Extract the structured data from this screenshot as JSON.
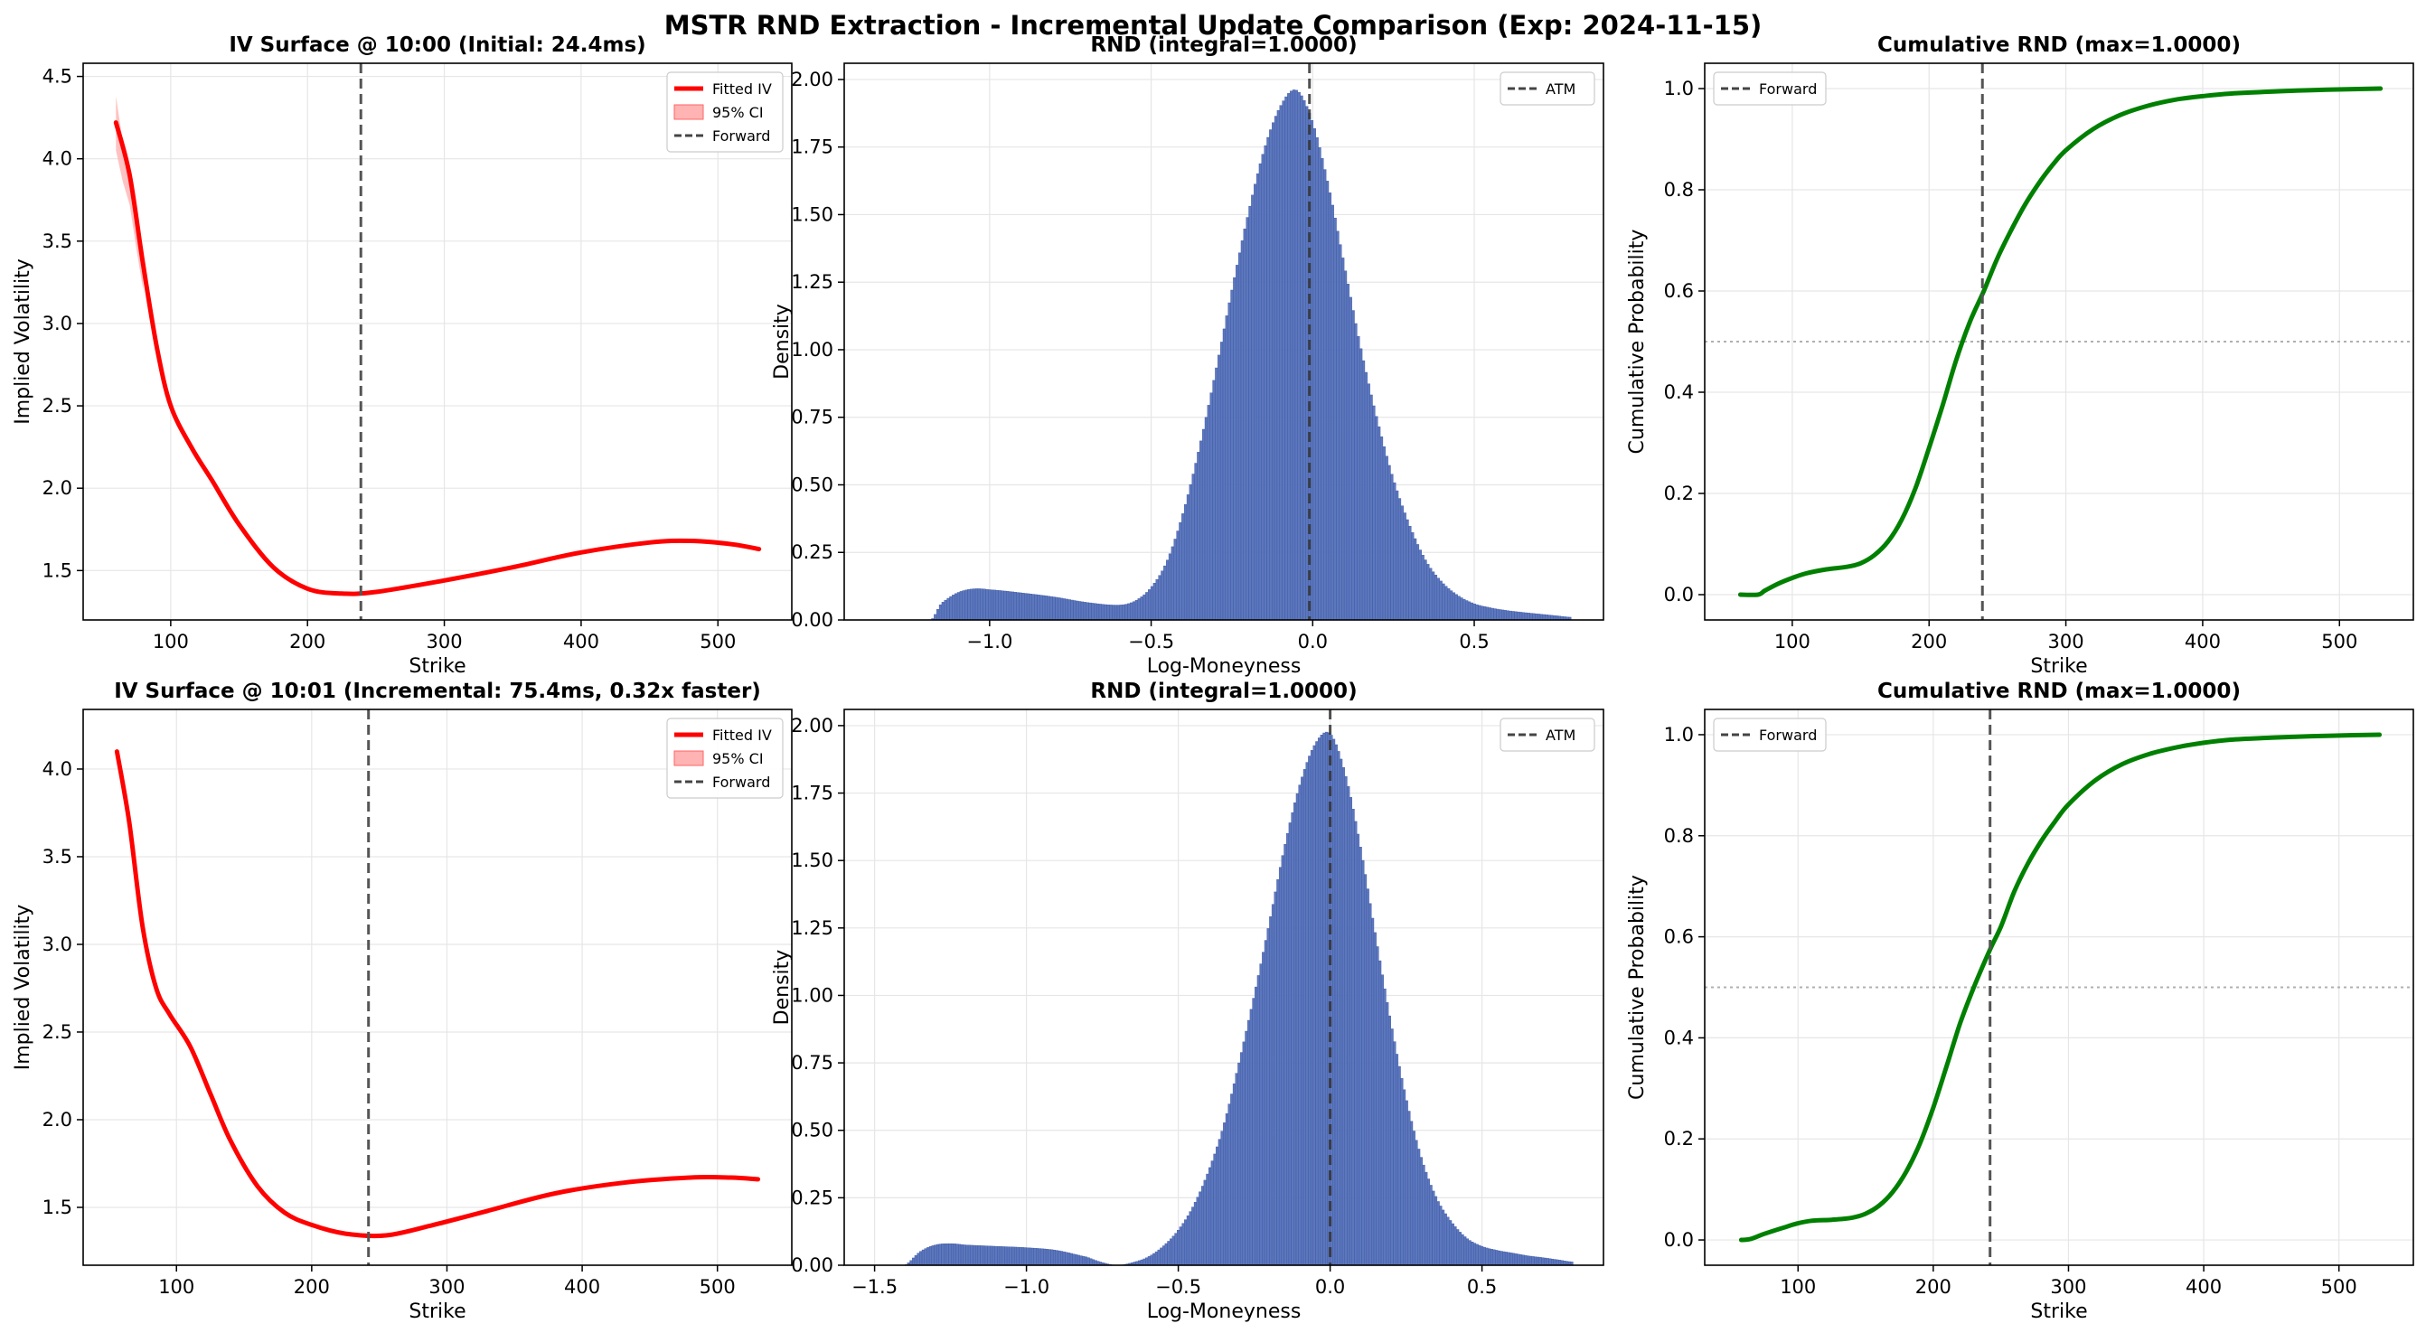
{
  "figure": {
    "title": "MSTR RND Extraction - Incremental Update Comparison (Exp: 2024-11-15)",
    "colors": {
      "iv": "#ff0000",
      "ci": "#ffb3b3",
      "bars": "#5470b8",
      "bar_edge": "#3a56a6",
      "cdf": "#008000",
      "vline": "#555555"
    }
  },
  "chart_data": [
    {
      "id": "iv1",
      "type": "line",
      "title": "IV Surface @ 10:00 (Initial: 24.4ms)",
      "xlabel": "Strike",
      "ylabel": "Implied Volatility",
      "xlim": [
        36,
        554
      ],
      "ylim": [
        1.2,
        4.58
      ],
      "xticks": [
        100,
        200,
        300,
        400,
        500
      ],
      "xticklabels": [
        "100",
        "200",
        "300",
        "400",
        "500"
      ],
      "yticks": [
        1.5,
        2.0,
        2.5,
        3.0,
        3.5,
        4.0,
        4.5
      ],
      "yticklabels": [
        "1.5",
        "2.0",
        "2.5",
        "3.0",
        "3.5",
        "4.0",
        "4.5"
      ],
      "grid": true,
      "legend_position": "upper right",
      "legend": [
        "Fitted IV",
        "95% CI",
        "Forward"
      ],
      "vline": 239,
      "vline_legend": "Forward",
      "series": [
        {
          "name": "Fitted IV",
          "x": [
            60,
            70,
            80,
            90,
            100,
            115,
            130,
            150,
            175,
            200,
            225,
            250,
            300,
            350,
            400,
            450,
            480,
            510,
            530
          ],
          "y": [
            4.22,
            3.9,
            3.35,
            2.85,
            2.5,
            2.25,
            2.05,
            1.78,
            1.52,
            1.39,
            1.36,
            1.37,
            1.44,
            1.52,
            1.61,
            1.67,
            1.68,
            1.66,
            1.63
          ]
        }
      ],
      "ci_band": {
        "name": "95% CI",
        "x": [
          60,
          65,
          70,
          75,
          80
        ],
        "lower": [
          4.05,
          3.86,
          3.72,
          3.45,
          3.2
        ],
        "upper": [
          4.38,
          4.1,
          3.92,
          3.55,
          3.26
        ]
      }
    },
    {
      "id": "rnd1",
      "type": "bar",
      "title": "RND (integral=1.0000)",
      "xlabel": "Log-Moneyness",
      "ylabel": "Density",
      "xlim": [
        -1.45,
        0.9
      ],
      "ylim": [
        0,
        2.06
      ],
      "xticks": [
        -1.0,
        -0.5,
        0.0,
        0.5
      ],
      "xticklabels": [
        "−1.0",
        "−0.5",
        "0.0",
        "0.5"
      ],
      "yticks": [
        0,
        0.25,
        0.5,
        0.75,
        1.0,
        1.25,
        1.5,
        1.75,
        2.0
      ],
      "yticklabels": [
        "0.00",
        "0.25",
        "0.50",
        "0.75",
        "1.00",
        "1.25",
        "1.50",
        "1.75",
        "2.00"
      ],
      "grid": true,
      "legend_position": "upper right",
      "legend": [
        "ATM"
      ],
      "vline": -0.01,
      "vline_legend": "ATM",
      "x": [
        -1.18,
        -1.15,
        -1.1,
        -1.05,
        -1.0,
        -0.9,
        -0.8,
        -0.7,
        -0.6,
        -0.55,
        -0.5,
        -0.45,
        -0.4,
        -0.35,
        -0.3,
        -0.25,
        -0.2,
        -0.15,
        -0.1,
        -0.05,
        0.0,
        0.05,
        0.1,
        0.15,
        0.2,
        0.25,
        0.3,
        0.35,
        0.4,
        0.45,
        0.5,
        0.55,
        0.6,
        0.65,
        0.7,
        0.75,
        0.8
      ],
      "values": [
        0.0,
        0.06,
        0.1,
        0.115,
        0.112,
        0.1,
        0.085,
        0.065,
        0.055,
        0.07,
        0.12,
        0.22,
        0.4,
        0.64,
        0.92,
        1.22,
        1.5,
        1.74,
        1.9,
        1.96,
        1.84,
        1.6,
        1.3,
        1.0,
        0.74,
        0.52,
        0.35,
        0.22,
        0.14,
        0.09,
        0.06,
        0.045,
        0.035,
        0.028,
        0.022,
        0.016,
        0.01
      ]
    },
    {
      "id": "cdf1",
      "type": "line",
      "title": "Cumulative RND (max=1.0000)",
      "xlabel": "Strike",
      "ylabel": "Cumulative Probability",
      "xlim": [
        36,
        554
      ],
      "ylim": [
        -0.05,
        1.05
      ],
      "xticks": [
        100,
        200,
        300,
        400,
        500
      ],
      "xticklabels": [
        "100",
        "200",
        "300",
        "400",
        "500"
      ],
      "yticks": [
        0.0,
        0.2,
        0.4,
        0.6,
        0.8,
        1.0
      ],
      "yticklabels": [
        "0.0",
        "0.2",
        "0.4",
        "0.6",
        "0.8",
        "1.0"
      ],
      "grid": true,
      "legend_position": "upper left",
      "legend": [
        "Forward"
      ],
      "vline": 239,
      "vline_legend": "Forward",
      "hline": 0.5,
      "series": [
        {
          "x": [
            62,
            75,
            80,
            90,
            100,
            110,
            125,
            140,
            150,
            160,
            170,
            180,
            190,
            200,
            210,
            220,
            230,
            240,
            250,
            260,
            270,
            280,
            290,
            300,
            320,
            340,
            360,
            380,
            400,
            420,
            450,
            480,
            510,
            530
          ],
          "y": [
            0.0,
            0.0,
            0.008,
            0.022,
            0.033,
            0.042,
            0.05,
            0.055,
            0.062,
            0.078,
            0.105,
            0.148,
            0.21,
            0.29,
            0.375,
            0.465,
            0.54,
            0.6,
            0.665,
            0.72,
            0.77,
            0.812,
            0.848,
            0.878,
            0.92,
            0.948,
            0.966,
            0.978,
            0.985,
            0.99,
            0.994,
            0.997,
            0.999,
            1.0
          ]
        }
      ]
    },
    {
      "id": "iv2",
      "type": "line",
      "title": "IV Surface @ 10:01 (Incremental: 75.4ms, 0.32x faster)",
      "xlabel": "Strike",
      "ylabel": "Implied Volatility",
      "xlim": [
        31,
        555
      ],
      "ylim": [
        1.17,
        4.34
      ],
      "xticks": [
        100,
        200,
        300,
        400,
        500
      ],
      "xticklabels": [
        "100",
        "200",
        "300",
        "400",
        "500"
      ],
      "yticks": [
        1.5,
        2.0,
        2.5,
        3.0,
        3.5,
        4.0
      ],
      "yticklabels": [
        "1.5",
        "2.0",
        "2.5",
        "3.0",
        "3.5",
        "4.0"
      ],
      "grid": true,
      "legend_position": "upper right",
      "legend": [
        "Fitted IV",
        "95% CI",
        "Forward"
      ],
      "vline": 242,
      "vline_legend": "Forward",
      "series": [
        {
          "name": "Fitted IV",
          "x": [
            56,
            65,
            75,
            85,
            95,
            110,
            125,
            140,
            160,
            180,
            200,
            225,
            255,
            290,
            330,
            380,
            430,
            480,
            510,
            530
          ],
          "y": [
            4.1,
            3.7,
            3.1,
            2.75,
            2.6,
            2.42,
            2.15,
            1.88,
            1.62,
            1.47,
            1.4,
            1.35,
            1.34,
            1.4,
            1.48,
            1.58,
            1.64,
            1.67,
            1.67,
            1.66
          ]
        }
      ],
      "ci_band": {
        "name": "95% CI",
        "x": [
          56,
          530
        ],
        "lower": [
          4.1,
          1.66
        ],
        "upper": [
          4.1,
          1.66
        ]
      }
    },
    {
      "id": "rnd2",
      "type": "bar",
      "title": "RND (integral=1.0000)",
      "xlabel": "Log-Moneyness",
      "ylabel": "Density",
      "xlim": [
        -1.6,
        0.9
      ],
      "ylim": [
        0,
        2.06
      ],
      "xticks": [
        -1.5,
        -1.0,
        -0.5,
        0.0,
        0.5
      ],
      "xticklabels": [
        "−1.5",
        "−1.0",
        "−0.5",
        "0.0",
        "0.5"
      ],
      "yticks": [
        0,
        0.25,
        0.5,
        0.75,
        1.0,
        1.25,
        1.5,
        1.75,
        2.0
      ],
      "yticklabels": [
        "0.00",
        "0.25",
        "0.50",
        "0.75",
        "1.00",
        "1.25",
        "1.50",
        "1.75",
        "2.00"
      ],
      "grid": true,
      "legend_position": "upper right",
      "legend": [
        "ATM"
      ],
      "vline": 0.0,
      "vline_legend": "ATM",
      "x": [
        -1.4,
        -1.35,
        -1.3,
        -1.25,
        -1.2,
        -1.1,
        -1.0,
        -0.9,
        -0.8,
        -0.75,
        -0.7,
        -0.65,
        -0.6,
        -0.55,
        -0.5,
        -0.45,
        -0.4,
        -0.35,
        -0.3,
        -0.25,
        -0.2,
        -0.15,
        -0.1,
        -0.05,
        0.0,
        0.05,
        0.1,
        0.15,
        0.2,
        0.25,
        0.3,
        0.35,
        0.4,
        0.45,
        0.5,
        0.55,
        0.6,
        0.65,
        0.7,
        0.75,
        0.8
      ],
      "values": [
        0.0,
        0.05,
        0.075,
        0.08,
        0.075,
        0.07,
        0.065,
        0.055,
        0.03,
        0.01,
        0.0,
        0.01,
        0.03,
        0.07,
        0.13,
        0.22,
        0.35,
        0.52,
        0.75,
        1.0,
        1.27,
        1.55,
        1.78,
        1.93,
        1.97,
        1.82,
        1.55,
        1.22,
        0.9,
        0.62,
        0.4,
        0.25,
        0.16,
        0.1,
        0.07,
        0.055,
        0.045,
        0.035,
        0.028,
        0.02,
        0.012
      ]
    },
    {
      "id": "cdf2",
      "type": "line",
      "title": "Cumulative RND (max=1.0000)",
      "xlabel": "Strike",
      "ylabel": "Cumulative Probability",
      "xlim": [
        31,
        555
      ],
      "ylim": [
        -0.05,
        1.05
      ],
      "xticks": [
        100,
        200,
        300,
        400,
        500
      ],
      "xticklabels": [
        "100",
        "200",
        "300",
        "400",
        "500"
      ],
      "yticks": [
        0.0,
        0.2,
        0.4,
        0.6,
        0.8,
        1.0
      ],
      "yticklabels": [
        "0.0",
        "0.2",
        "0.4",
        "0.6",
        "0.8",
        "1.0"
      ],
      "grid": true,
      "legend_position": "upper left",
      "legend": [
        "Forward"
      ],
      "vline": 242,
      "vline_legend": "Forward",
      "hline": 0.5,
      "series": [
        {
          "x": [
            58,
            65,
            75,
            90,
            100,
            110,
            125,
            140,
            150,
            160,
            170,
            180,
            190,
            200,
            210,
            220,
            230,
            242,
            250,
            260,
            270,
            280,
            290,
            300,
            320,
            340,
            360,
            380,
            400,
            420,
            450,
            480,
            510,
            530
          ],
          "y": [
            0.0,
            0.002,
            0.012,
            0.025,
            0.033,
            0.038,
            0.04,
            0.044,
            0.052,
            0.068,
            0.095,
            0.135,
            0.19,
            0.262,
            0.345,
            0.43,
            0.5,
            0.575,
            0.62,
            0.69,
            0.745,
            0.79,
            0.828,
            0.862,
            0.91,
            0.942,
            0.962,
            0.975,
            0.984,
            0.99,
            0.994,
            0.997,
            0.999,
            1.0
          ]
        }
      ]
    }
  ]
}
